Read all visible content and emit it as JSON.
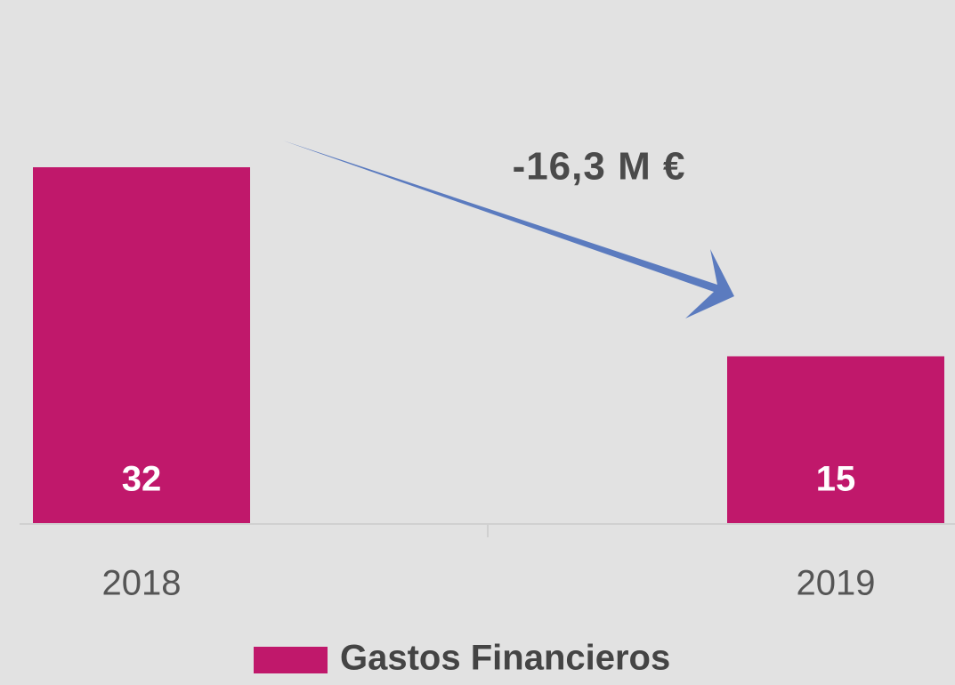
{
  "chart_data": {
    "type": "bar",
    "categories": [
      "2018",
      "2019"
    ],
    "series": [
      {
        "name": "Gastos Financieros",
        "color": "#c0186b",
        "values": [
          32,
          15
        ]
      }
    ],
    "annotation": "-16,3 M €"
  }
}
